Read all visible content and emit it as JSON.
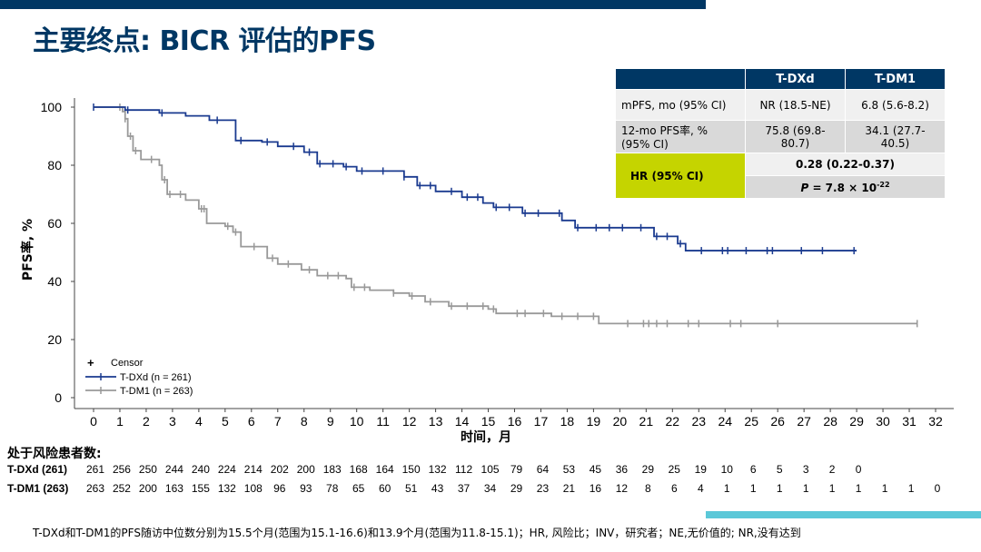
{
  "title": "主要终点: BICR 评估的PFS",
  "table": {
    "headers": [
      "",
      "T-DXd",
      "T-DM1"
    ],
    "rows": [
      {
        "label": "mPFS, mo (95% CI)",
        "tdxd": "NR (18.5-NE)",
        "tdm1": "6.8 (5.6-8.2)"
      },
      {
        "label": "12-mo PFS率, % (95% CI)",
        "tdxd": "75.8 (69.8-80.7)",
        "tdm1": "34.1 (27.7-40.5)"
      }
    ],
    "hr_label": "HR (95% CI)",
    "hr_value": "0.28 (0.22-0.37)",
    "p_prefix": "P",
    "p_value": "= 7.8 × 10",
    "p_exp": "-22"
  },
  "chart_data": {
    "type": "line",
    "subtype": "kaplan-meier",
    "xlabel": "时间，月",
    "ylabel": "PFS率, %",
    "xlim": [
      0,
      32
    ],
    "ylim": [
      0,
      100
    ],
    "xticks": [
      0,
      1,
      2,
      3,
      4,
      5,
      6,
      7,
      8,
      9,
      10,
      11,
      12,
      13,
      14,
      15,
      16,
      17,
      18,
      19,
      20,
      21,
      22,
      23,
      24,
      25,
      26,
      27,
      28,
      29,
      30,
      31,
      32
    ],
    "yticks": [
      0,
      20,
      40,
      60,
      80,
      100
    ],
    "grid": false,
    "legend_position": "bottom-left",
    "legend": {
      "censor": "Censor"
    },
    "series": [
      {
        "name": "T-DXd (n = 261)",
        "color": "#1a3a8f",
        "steps": [
          [
            0,
            100
          ],
          [
            1.2,
            99
          ],
          [
            2.5,
            98
          ],
          [
            3.5,
            97
          ],
          [
            4.4,
            95.5
          ],
          [
            5.4,
            88.5
          ],
          [
            6.4,
            88
          ],
          [
            7,
            86.5
          ],
          [
            8,
            84.5
          ],
          [
            8.5,
            80.5
          ],
          [
            9.5,
            79.5
          ],
          [
            10,
            78
          ],
          [
            11.8,
            76
          ],
          [
            12.3,
            73
          ],
          [
            13,
            71
          ],
          [
            14,
            69
          ],
          [
            14.8,
            67
          ],
          [
            15.2,
            65.5
          ],
          [
            16.3,
            63.5
          ],
          [
            17.8,
            61
          ],
          [
            18.3,
            58.5
          ],
          [
            21.3,
            55.5
          ],
          [
            22.2,
            53
          ],
          [
            22.5,
            50.6
          ],
          [
            29,
            50.6
          ]
        ],
        "censors": [
          0,
          1.3,
          2.6,
          4.7,
          5.6,
          6.6,
          7.6,
          8.2,
          8.6,
          9.1,
          9.6,
          10.2,
          11,
          11.8,
          12.4,
          12.8,
          13.6,
          14.2,
          14.6,
          15.3,
          15.8,
          16.4,
          16.9,
          17.7,
          18.4,
          19.1,
          19.6,
          20.1,
          20.8,
          21.4,
          21.8,
          22.3,
          23.1,
          23.9,
          24.1,
          24.8,
          25.6,
          25.8,
          26.9,
          27.7,
          28.9
        ]
      },
      {
        "name": "T-DM1 (n = 263)",
        "color": "#999999",
        "steps": [
          [
            0,
            100
          ],
          [
            1.1,
            98.5
          ],
          [
            1.2,
            96
          ],
          [
            1.3,
            90
          ],
          [
            1.5,
            85
          ],
          [
            1.8,
            82
          ],
          [
            2.5,
            80
          ],
          [
            2.6,
            75
          ],
          [
            2.8,
            70
          ],
          [
            3.5,
            68
          ],
          [
            4.0,
            65
          ],
          [
            4.3,
            60
          ],
          [
            5.0,
            59
          ],
          [
            5.3,
            57
          ],
          [
            5.6,
            52
          ],
          [
            6.6,
            48
          ],
          [
            7.0,
            46
          ],
          [
            7.9,
            44
          ],
          [
            8.5,
            42
          ],
          [
            9.6,
            41
          ],
          [
            9.8,
            38
          ],
          [
            10.5,
            37
          ],
          [
            11.4,
            36
          ],
          [
            12.0,
            35
          ],
          [
            12.6,
            33
          ],
          [
            13.5,
            31.5
          ],
          [
            15.0,
            30.5
          ],
          [
            15.3,
            29
          ],
          [
            17.4,
            28
          ],
          [
            19.2,
            25.5
          ],
          [
            31.3,
            25.5
          ]
        ],
        "censors": [
          1.0,
          1.2,
          1.4,
          1.6,
          2.2,
          2.7,
          2.9,
          3.3,
          4.1,
          4.2,
          5.1,
          5.4,
          6.1,
          6.8,
          7.4,
          8.2,
          8.9,
          9.3,
          9.9,
          10.3,
          11.4,
          12.1,
          12.8,
          13.6,
          14.2,
          14.8,
          15.2,
          16.1,
          16.4,
          17.1,
          17.8,
          18.4,
          19.0,
          20.3,
          20.9,
          21.1,
          21.4,
          21.8,
          22.6,
          23.0,
          24.2,
          24.6,
          26.0,
          31.3
        ]
      }
    ],
    "risk_table": {
      "title": "处于风险患者数:",
      "rows": [
        {
          "label": "T-DXd (261)",
          "values": [
            261,
            256,
            250,
            244,
            240,
            224,
            214,
            202,
            200,
            183,
            168,
            164,
            150,
            132,
            112,
            105,
            79,
            64,
            53,
            45,
            36,
            29,
            25,
            19,
            10,
            6,
            5,
            3,
            2,
            0
          ]
        },
        {
          "label": "T-DM1 (263)",
          "values": [
            263,
            252,
            200,
            163,
            155,
            132,
            108,
            96,
            93,
            78,
            65,
            60,
            51,
            43,
            37,
            34,
            29,
            23,
            21,
            16,
            12,
            8,
            6,
            4,
            1,
            1,
            1,
            1,
            1,
            1,
            1,
            1,
            0
          ]
        }
      ]
    }
  },
  "footnote": "T-DXd和T-DM1的PFS随访中位数分别为15.5个月(范围为15.1-16.6)和13.9个月(范围为11.8-15.1)；HR, 风险比；INV，研究者；NE,无价值的; NR,没有达到"
}
